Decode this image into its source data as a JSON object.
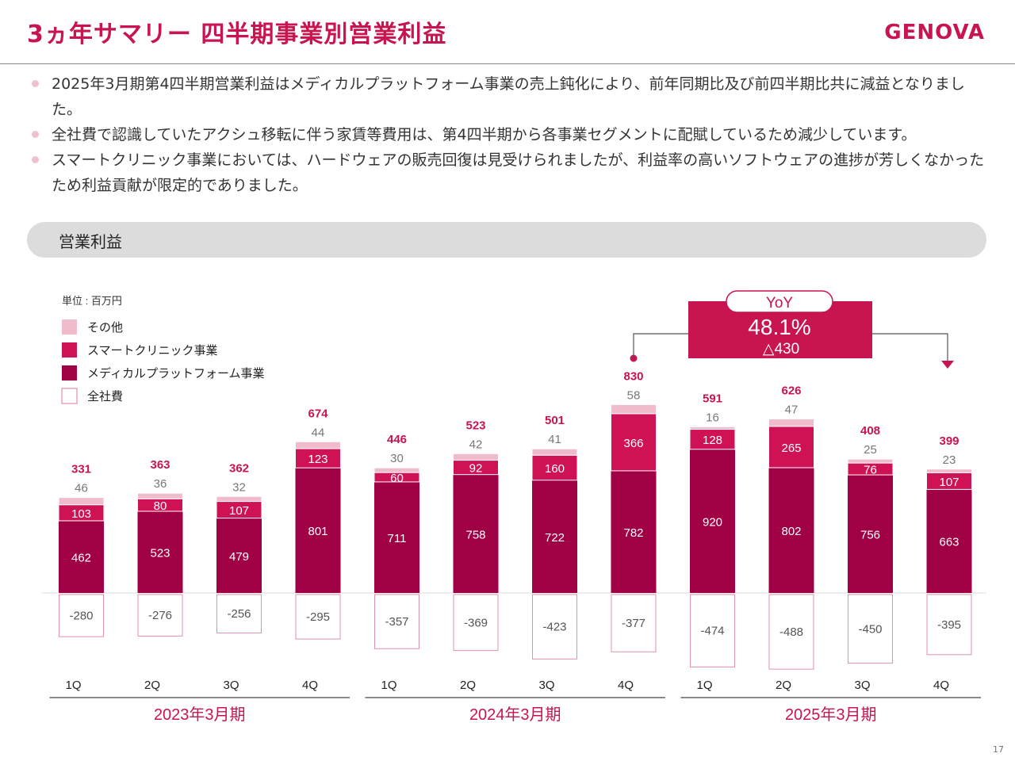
{
  "title": "3ヵ年サマリー 四半期事業別営業利益",
  "logo_text": "GENOVA",
  "bullets": [
    "2025年3月期第4四半期営業利益はメディカルプラットフォーム事業の売上鈍化により、前年同期比及び前四半期比共に減益となりました。",
    "全社費で認識していたアクシュ移転に伴う家賃等費用は、第4四半期から各事業セグメントに配賦しているため減少しています。",
    "スマートクリニック事業においては、ハードウェアの販売回復は見受けられましたが、利益率の高いソフトウェアの進捗が芳しくなかったため利益貢献が限定的でありました。"
  ],
  "section_label": "営業利益",
  "page_number": "17",
  "colors": {
    "brand": "#c8144f",
    "medical": "#a00044",
    "smart": "#cf1256",
    "other": "#f0bccb",
    "corporate_border": "#e090aa"
  },
  "chart_data": {
    "type": "bar",
    "unit_label": "単位 : 百万円",
    "categories": [
      "1Q",
      "2Q",
      "3Q",
      "4Q",
      "1Q",
      "2Q",
      "3Q",
      "4Q",
      "1Q",
      "2Q",
      "3Q",
      "4Q"
    ],
    "fiscal_years": [
      {
        "label": "2023年3月期",
        "quarters": [
          0,
          1,
          2,
          3
        ]
      },
      {
        "label": "2024年3月期",
        "quarters": [
          4,
          5,
          6,
          7
        ]
      },
      {
        "label": "2025年3月期",
        "quarters": [
          8,
          9,
          10,
          11
        ]
      }
    ],
    "series": [
      {
        "name": "メディカルプラットフォーム事業",
        "key": "medical",
        "values": [
          462,
          523,
          479,
          801,
          711,
          758,
          722,
          782,
          920,
          802,
          756,
          663
        ]
      },
      {
        "name": "スマートクリニック事業",
        "key": "smart",
        "values": [
          103,
          80,
          107,
          123,
          60,
          92,
          160,
          366,
          128,
          265,
          76,
          107
        ]
      },
      {
        "name": "その他",
        "key": "other",
        "values": [
          46,
          36,
          32,
          44,
          30,
          42,
          41,
          58,
          16,
          47,
          25,
          23
        ]
      },
      {
        "name": "全社費",
        "key": "corporate",
        "values": [
          -280,
          -276,
          -256,
          -295,
          -357,
          -369,
          -423,
          -377,
          -474,
          -488,
          -450,
          -395
        ]
      }
    ],
    "totals": [
      331,
      363,
      362,
      674,
      446,
      523,
      501,
      830,
      591,
      626,
      408,
      399
    ],
    "legend_order": [
      "その他",
      "スマートクリニック事業",
      "メディカルプラットフォーム事業",
      "全社費"
    ],
    "legend_placement": "top-left",
    "callout": {
      "label": "YoY",
      "value": "48.1%",
      "change": "△430",
      "from_index": 7,
      "to_index": 11
    }
  }
}
